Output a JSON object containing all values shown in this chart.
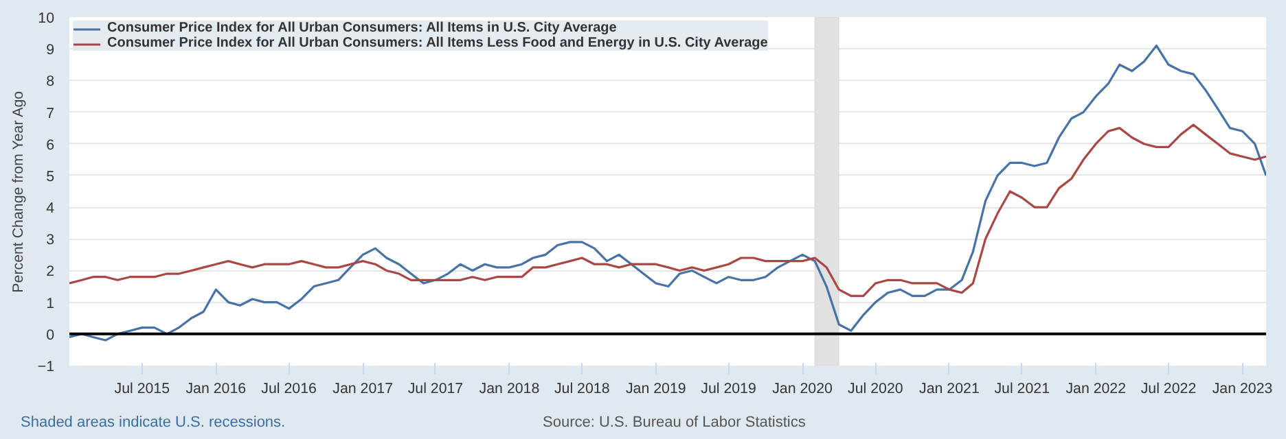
{
  "chart_data": {
    "type": "line",
    "ylabel": "Percent Change from Year Ago",
    "x": [
      "2015-01",
      "2015-02",
      "2015-03",
      "2015-04",
      "2015-05",
      "2015-06",
      "2015-07",
      "2015-08",
      "2015-09",
      "2015-10",
      "2015-11",
      "2015-12",
      "2016-01",
      "2016-02",
      "2016-03",
      "2016-04",
      "2016-05",
      "2016-06",
      "2016-07",
      "2016-08",
      "2016-09",
      "2016-10",
      "2016-11",
      "2016-12",
      "2017-01",
      "2017-02",
      "2017-03",
      "2017-04",
      "2017-05",
      "2017-06",
      "2017-07",
      "2017-08",
      "2017-09",
      "2017-10",
      "2017-11",
      "2017-12",
      "2018-01",
      "2018-02",
      "2018-03",
      "2018-04",
      "2018-05",
      "2018-06",
      "2018-07",
      "2018-08",
      "2018-09",
      "2018-10",
      "2018-11",
      "2018-12",
      "2019-01",
      "2019-02",
      "2019-03",
      "2019-04",
      "2019-05",
      "2019-06",
      "2019-07",
      "2019-08",
      "2019-09",
      "2019-10",
      "2019-11",
      "2019-12",
      "2020-01",
      "2020-02",
      "2020-03",
      "2020-04",
      "2020-05",
      "2020-06",
      "2020-07",
      "2020-08",
      "2020-09",
      "2020-10",
      "2020-11",
      "2020-12",
      "2021-01",
      "2021-02",
      "2021-03",
      "2021-04",
      "2021-05",
      "2021-06",
      "2021-07",
      "2021-08",
      "2021-09",
      "2021-10",
      "2021-11",
      "2021-12",
      "2022-01",
      "2022-02",
      "2022-03",
      "2022-04",
      "2022-05",
      "2022-06",
      "2022-07",
      "2022-08",
      "2022-09",
      "2022-10",
      "2022-11",
      "2022-12",
      "2023-01",
      "2023-02",
      "2023-03"
    ],
    "series": [
      {
        "name": "Consumer Price Index for All Urban Consumers: All Items in U.S. City Average",
        "color": "#4572a7",
        "values": [
          -0.1,
          0.0,
          -0.1,
          -0.2,
          0.0,
          0.1,
          0.2,
          0.2,
          0.0,
          0.2,
          0.5,
          0.7,
          1.4,
          1.0,
          0.9,
          1.1,
          1.0,
          1.0,
          0.8,
          1.1,
          1.5,
          1.6,
          1.7,
          2.1,
          2.5,
          2.7,
          2.4,
          2.2,
          1.9,
          1.6,
          1.7,
          1.9,
          2.2,
          2.0,
          2.2,
          2.1,
          2.1,
          2.2,
          2.4,
          2.5,
          2.8,
          2.9,
          2.9,
          2.7,
          2.3,
          2.5,
          2.2,
          1.9,
          1.6,
          1.5,
          1.9,
          2.0,
          1.8,
          1.6,
          1.8,
          1.7,
          1.7,
          1.8,
          2.1,
          2.3,
          2.5,
          2.3,
          1.5,
          0.3,
          0.1,
          0.6,
          1.0,
          1.3,
          1.4,
          1.2,
          1.2,
          1.4,
          1.4,
          1.7,
          2.6,
          4.2,
          5.0,
          5.4,
          5.4,
          5.3,
          5.4,
          6.2,
          6.8,
          7.0,
          7.5,
          7.9,
          8.5,
          8.3,
          8.6,
          9.1,
          8.5,
          8.3,
          8.2,
          7.7,
          7.1,
          6.5,
          6.4,
          6.0,
          5.0
        ]
      },
      {
        "name": "Consumer Price Index for All Urban Consumers: All Items Less Food and Energy in U.S. City Average",
        "color": "#aa4643",
        "values": [
          1.6,
          1.7,
          1.8,
          1.8,
          1.7,
          1.8,
          1.8,
          1.8,
          1.9,
          1.9,
          2.0,
          2.1,
          2.2,
          2.3,
          2.2,
          2.1,
          2.2,
          2.2,
          2.2,
          2.3,
          2.2,
          2.1,
          2.1,
          2.2,
          2.3,
          2.2,
          2.0,
          1.9,
          1.7,
          1.7,
          1.7,
          1.7,
          1.7,
          1.8,
          1.7,
          1.8,
          1.8,
          1.8,
          2.1,
          2.1,
          2.2,
          2.3,
          2.4,
          2.2,
          2.2,
          2.1,
          2.2,
          2.2,
          2.2,
          2.1,
          2.0,
          2.1,
          2.0,
          2.1,
          2.2,
          2.4,
          2.4,
          2.3,
          2.3,
          2.3,
          2.3,
          2.4,
          2.1,
          1.4,
          1.2,
          1.2,
          1.6,
          1.7,
          1.7,
          1.6,
          1.6,
          1.6,
          1.4,
          1.3,
          1.6,
          3.0,
          3.8,
          4.5,
          4.3,
          4.0,
          4.0,
          4.6,
          4.9,
          5.5,
          6.0,
          6.4,
          6.5,
          6.2,
          6.0,
          5.9,
          5.9,
          6.3,
          6.6,
          6.3,
          6.0,
          5.7,
          5.6,
          5.5,
          5.6
        ]
      }
    ],
    "xlim": [
      "2015-01",
      "2023-03"
    ],
    "xticks": [
      {
        "value": "2015-07",
        "label": "Jul 2015"
      },
      {
        "value": "2016-01",
        "label": "Jan 2016"
      },
      {
        "value": "2016-07",
        "label": "Jul 2016"
      },
      {
        "value": "2017-01",
        "label": "Jan 2017"
      },
      {
        "value": "2017-07",
        "label": "Jul 2017"
      },
      {
        "value": "2018-01",
        "label": "Jan 2018"
      },
      {
        "value": "2018-07",
        "label": "Jul 2018"
      },
      {
        "value": "2019-01",
        "label": "Jan 2019"
      },
      {
        "value": "2019-07",
        "label": "Jul 2019"
      },
      {
        "value": "2020-01",
        "label": "Jan 2020"
      },
      {
        "value": "2020-07",
        "label": "Jul 2020"
      },
      {
        "value": "2021-01",
        "label": "Jan 2021"
      },
      {
        "value": "2021-07",
        "label": "Jul 2021"
      },
      {
        "value": "2022-01",
        "label": "Jan 2022"
      },
      {
        "value": "2022-07",
        "label": "Jul 2022"
      },
      {
        "value": "2023-01",
        "label": "Jan 2023"
      }
    ],
    "ylim": [
      -1,
      10
    ],
    "yticks": [
      -1,
      0,
      1,
      2,
      3,
      4,
      5,
      6,
      7,
      8,
      9,
      10
    ],
    "grid": "y",
    "legend": "top left",
    "line_style": "solid",
    "ref_lines": [
      {
        "axis": "y",
        "value": 0,
        "color": "#000000"
      }
    ],
    "bands": [
      {
        "axis": "x",
        "from": "2020-02",
        "to": "2020-04",
        "color": "#e1e1e1"
      }
    ],
    "annotations": [
      "Shaded areas indicate U.S. recessions.",
      "Source: U.S. Bureau of Labor Statistics"
    ]
  }
}
